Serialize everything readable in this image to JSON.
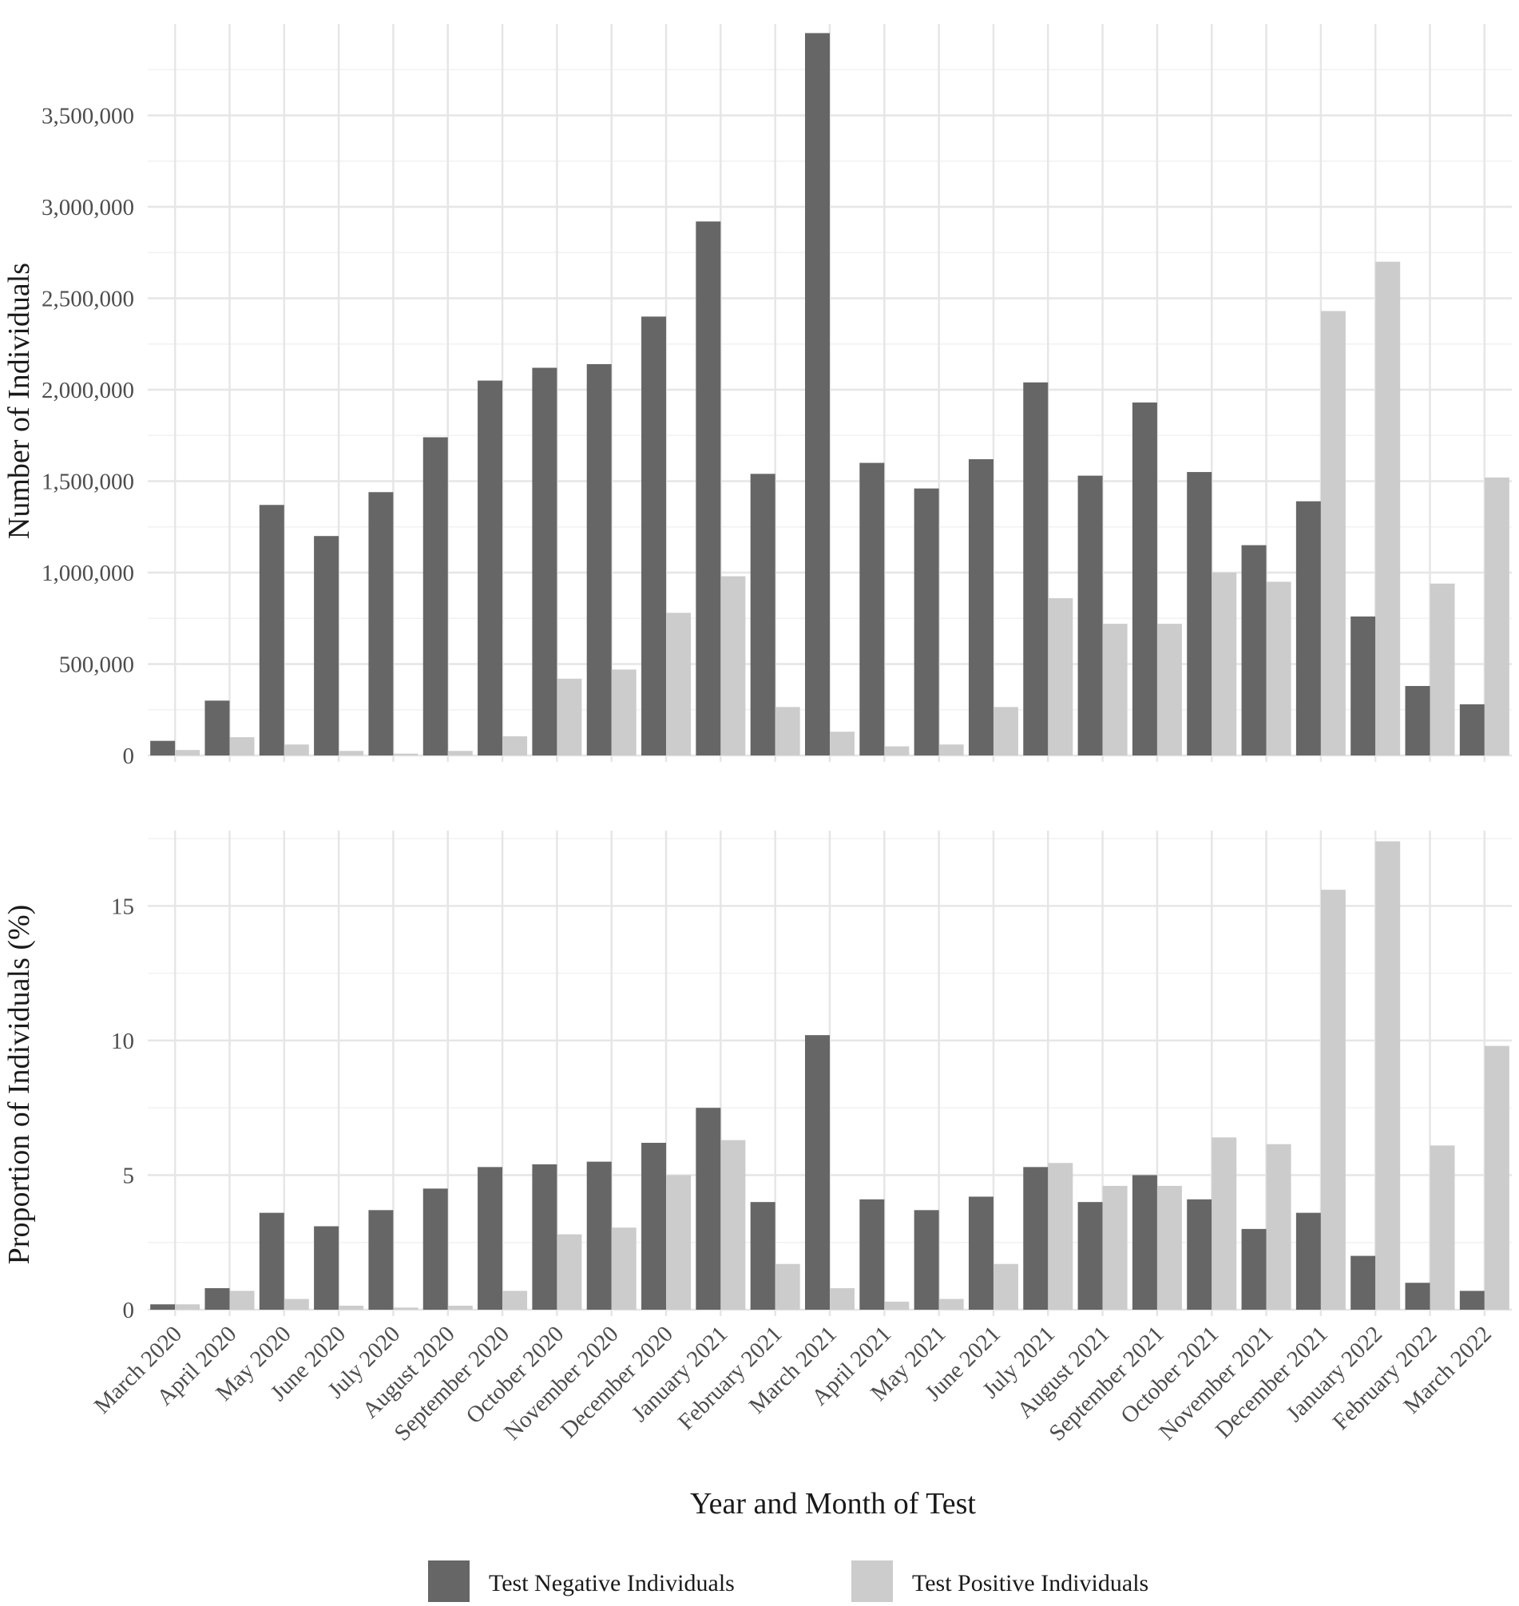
{
  "chart_data": {
    "type": "bar",
    "xlabel": "Year and Month of Test",
    "categories": [
      "March 2020",
      "April 2020",
      "May 2020",
      "June 2020",
      "July 2020",
      "August 2020",
      "September 2020",
      "October 2020",
      "November 2020",
      "December 2020",
      "January 2021",
      "February 2021",
      "March 2021",
      "April 2021",
      "May 2021",
      "June 2021",
      "July 2021",
      "August 2021",
      "September 2021",
      "October 2021",
      "November 2021",
      "December 2021",
      "January 2022",
      "February 2022",
      "March 2022"
    ],
    "legend": {
      "position": "bottom",
      "entries": [
        {
          "name": "Test Negative Individuals",
          "color": "#666666"
        },
        {
          "name": "Test Positive Individuals",
          "color": "#cccccc"
        }
      ]
    },
    "panels": [
      {
        "ylabel": "Number of Individuals",
        "ylim": [
          0,
          4000000
        ],
        "yticks": [
          0,
          500000,
          1000000,
          1500000,
          2000000,
          2500000,
          3000000,
          3500000
        ],
        "ytick_labels": [
          "0",
          "500,000",
          "1,000,000",
          "1,500,000",
          "2,000,000",
          "2,500,000",
          "3,000,000",
          "3,500,000"
        ],
        "grid": true,
        "series": [
          {
            "name": "Test Negative Individuals",
            "values": [
              80000,
              300000,
              1370000,
              1200000,
              1440000,
              1740000,
              2050000,
              2120000,
              2140000,
              2400000,
              2920000,
              1540000,
              3950000,
              1600000,
              1460000,
              1620000,
              2040000,
              1530000,
              1930000,
              1550000,
              1150000,
              1390000,
              760000,
              380000,
              280000
            ]
          },
          {
            "name": "Test Positive Individuals",
            "values": [
              30000,
              100000,
              60000,
              25000,
              10000,
              25000,
              105000,
              420000,
              470000,
              780000,
              980000,
              265000,
              130000,
              50000,
              60000,
              265000,
              860000,
              720000,
              720000,
              1000000,
              950000,
              2430000,
              2700000,
              940000,
              1520000
            ]
          }
        ]
      },
      {
        "ylabel": "Proportion of Individuals (%)",
        "ylim": [
          0,
          17.8
        ],
        "yticks": [
          0,
          5,
          10,
          15
        ],
        "ytick_labels": [
          "0",
          "5",
          "10",
          "15"
        ],
        "grid": true,
        "series": [
          {
            "name": "Test Negative Individuals",
            "values": [
              0.2,
              0.8,
              3.6,
              3.1,
              3.7,
              4.5,
              5.3,
              5.4,
              5.5,
              6.2,
              7.5,
              4.0,
              10.2,
              4.1,
              3.7,
              4.2,
              5.3,
              4.0,
              5.0,
              4.1,
              3.0,
              3.6,
              2.0,
              1.0,
              0.7
            ]
          },
          {
            "name": "Test Positive Individuals",
            "values": [
              0.2,
              0.7,
              0.4,
              0.15,
              0.08,
              0.15,
              0.7,
              2.8,
              3.05,
              5.0,
              6.3,
              1.7,
              0.8,
              0.3,
              0.4,
              1.7,
              5.45,
              4.6,
              4.6,
              6.4,
              6.15,
              15.6,
              17.4,
              6.1,
              9.8
            ]
          }
        ]
      }
    ]
  }
}
